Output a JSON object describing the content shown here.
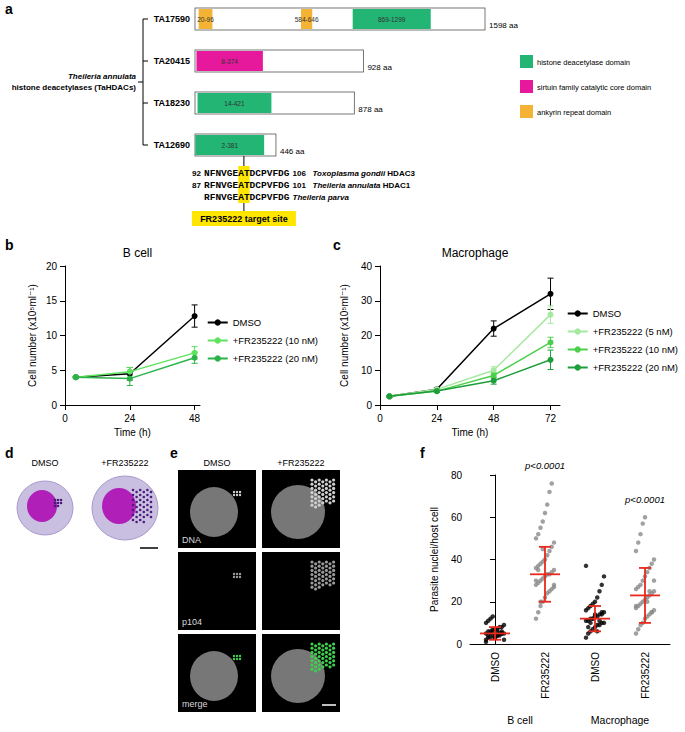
{
  "panel_labels": [
    "a",
    "b",
    "c",
    "d",
    "e",
    "f"
  ],
  "diagram": {
    "group_label": [
      "Theileria annulata",
      "histone deacetylases (TaHDACs)"
    ],
    "proteins": [
      {
        "name": "TA17590",
        "length": 1598,
        "length_label": "1598 aa",
        "domains": [
          {
            "type": "ankyrin",
            "start": 20,
            "end": 96,
            "label": "20-96"
          },
          {
            "type": "ankyrin",
            "start": 584,
            "end": 646,
            "label": "584-646"
          },
          {
            "type": "hdac",
            "start": 869,
            "end": 1299,
            "label": "869-1299"
          }
        ]
      },
      {
        "name": "TA20415",
        "length": 928,
        "length_label": "928 aa",
        "domains": [
          {
            "type": "sirtuin",
            "start": 8,
            "end": 374,
            "label": "8-374"
          }
        ]
      },
      {
        "name": "TA18230",
        "length": 878,
        "length_label": "878 aa",
        "domains": [
          {
            "type": "hdac",
            "start": 14,
            "end": 421,
            "label": "14-421"
          }
        ]
      },
      {
        "name": "TA12690",
        "length": 446,
        "length_label": "446 aa",
        "domains": [
          {
            "type": "hdac",
            "start": 2,
            "end": 381,
            "label": "2-381"
          }
        ]
      }
    ],
    "legend": [
      {
        "type": "hdac",
        "text": "histone deacetylase domain",
        "color": "#22b573"
      },
      {
        "type": "sirtuin",
        "text": "sirtuin family catalytic core domain",
        "color": "#e6199c"
      },
      {
        "type": "ankyrin",
        "text": "ankyrin repeat domain",
        "color": "#f5b335"
      }
    ],
    "alignment": [
      {
        "start": "92",
        "sequence": "NFNVGEATDCPVFDG",
        "end": "106",
        "species": "Toxoplasma gondii",
        "protein": "HDAC3"
      },
      {
        "start": "87",
        "sequence": "RFNVGEATDCPVFDG",
        "end": "101",
        "species": "Theileria annulata",
        "protein": "HDAC1"
      },
      {
        "start": null,
        "sequence": "RFNVGEATDCPVFDG",
        "end": null,
        "species": "Theileria parva",
        "protein": null
      }
    ],
    "highlight": "AT",
    "highlight_color": "#ffe600",
    "target_label": "FR235222 target site"
  },
  "chart_data": [
    {
      "type": "line",
      "title": "B cell",
      "x_label": "Time (h)",
      "y_label": "Cell number (x10⁵ml⁻¹)",
      "x": [
        4,
        24,
        48
      ],
      "xlim": [
        0,
        50
      ],
      "xticks": [
        0,
        24,
        48
      ],
      "ylim": [
        0,
        20
      ],
      "yticks": [
        0,
        5,
        10,
        15,
        20
      ],
      "grid": false,
      "legend": "right",
      "marker": "circle",
      "line_style": "solid",
      "series": [
        {
          "name": "DMSO",
          "color": "#000000",
          "values": [
            4,
            4.5,
            12.8
          ],
          "errors": [
            0.1,
            0.9,
            1.6
          ]
        },
        {
          "name": "+FR235222 (10 nM)",
          "color": "#5ee35e",
          "values": [
            4,
            4.8,
            7.5
          ],
          "errors": [
            0.1,
            0.6,
            0.9
          ]
        },
        {
          "name": "+FR235222 (20 nM)",
          "color": "#2bb34a",
          "values": [
            4,
            3.8,
            6.8
          ],
          "errors": [
            0.1,
            1.0,
            0.8
          ]
        }
      ]
    },
    {
      "type": "line",
      "title": "Macrophage",
      "x_label": "Time (h)",
      "y_label": "Cell number (x10⁵ml⁻¹)",
      "x": [
        4,
        24,
        48,
        72
      ],
      "xlim": [
        0,
        76
      ],
      "xticks": [
        0,
        24,
        48,
        72
      ],
      "ylim": [
        0,
        40
      ],
      "yticks": [
        0,
        10,
        20,
        30,
        40
      ],
      "grid": false,
      "legend": "right",
      "marker": "circle",
      "line_style": "solid",
      "series": [
        {
          "name": "DMSO",
          "color": "#000000",
          "values": [
            2.5,
            4.5,
            22,
            32
          ],
          "errors": [
            0.2,
            0.5,
            2.2,
            4.5
          ]
        },
        {
          "name": "+FR235222 (5 nM)",
          "color": "#a6e8a0",
          "values": [
            2.5,
            4.5,
            10,
            26
          ],
          "errors": [
            0.2,
            0.4,
            1.0,
            2.5
          ]
        },
        {
          "name": "+FR235222 (10 nM)",
          "color": "#4cd04c",
          "values": [
            2.5,
            4,
            8.5,
            18
          ],
          "errors": [
            0.2,
            0.4,
            0.8,
            1.5
          ]
        },
        {
          "name": "+FR235222 (20 nM)",
          "color": "#1e9e3a",
          "values": [
            2.5,
            4,
            7,
            13
          ],
          "errors": [
            0.2,
            0.4,
            1.0,
            2.8
          ]
        }
      ]
    },
    {
      "type": "scatter",
      "y_label": "Parasite nuclei/host cell",
      "categories": [
        "DMSO",
        "FR235222",
        "DMSO",
        "FR235222"
      ],
      "groups": [
        "B cell",
        "Macrophage"
      ],
      "ylim": [
        0,
        80
      ],
      "yticks": [
        0,
        20,
        40,
        60,
        80
      ],
      "grid": false,
      "colors": [
        "#000000",
        "#8a8a8a",
        "#000000",
        "#8a8a8a"
      ],
      "points": [
        [
          2,
          3,
          3,
          4,
          4,
          4,
          5,
          5,
          5,
          5,
          6,
          6,
          6,
          7,
          7,
          8,
          8,
          9,
          10,
          11,
          12,
          13,
          3,
          4,
          5,
          6,
          2,
          1,
          4,
          5,
          7,
          3,
          6,
          4,
          5
        ],
        [
          12,
          15,
          18,
          20,
          22,
          24,
          25,
          26,
          27,
          28,
          29,
          30,
          31,
          32,
          33,
          33,
          34,
          35,
          36,
          37,
          38,
          39,
          40,
          42,
          44,
          46,
          48,
          50,
          52,
          55,
          58,
          62,
          66,
          72,
          76,
          28,
          30,
          35,
          20,
          45
        ],
        [
          3,
          5,
          6,
          7,
          8,
          9,
          9,
          10,
          10,
          11,
          11,
          12,
          12,
          13,
          13,
          14,
          14,
          15,
          16,
          17,
          18,
          19,
          20,
          22,
          25,
          28,
          32,
          37,
          8,
          10,
          12,
          14,
          6,
          11,
          15
        ],
        [
          5,
          7,
          9,
          10,
          12,
          13,
          14,
          15,
          16,
          17,
          18,
          19,
          20,
          21,
          22,
          23,
          24,
          25,
          26,
          27,
          28,
          30,
          32,
          34,
          36,
          38,
          40,
          44,
          48,
          52,
          57,
          60,
          20,
          25,
          15,
          30,
          18
        ]
      ],
      "means": [
        5,
        33,
        12,
        23
      ],
      "sd": [
        3,
        13,
        6,
        13
      ],
      "mean_color": "#e8291c",
      "annotations": [
        {
          "text": "p<0.0001",
          "x": 1,
          "y": 82
        },
        {
          "text": "p<0.0001",
          "x": 3,
          "y": 66
        }
      ]
    }
  ],
  "micrographs": {
    "d": {
      "labels": [
        "DMSO",
        "+FR235222"
      ]
    },
    "e": {
      "columns": [
        "DMSO",
        "+FR235222"
      ],
      "rows": [
        "DNA",
        "p104",
        "merge"
      ]
    }
  }
}
